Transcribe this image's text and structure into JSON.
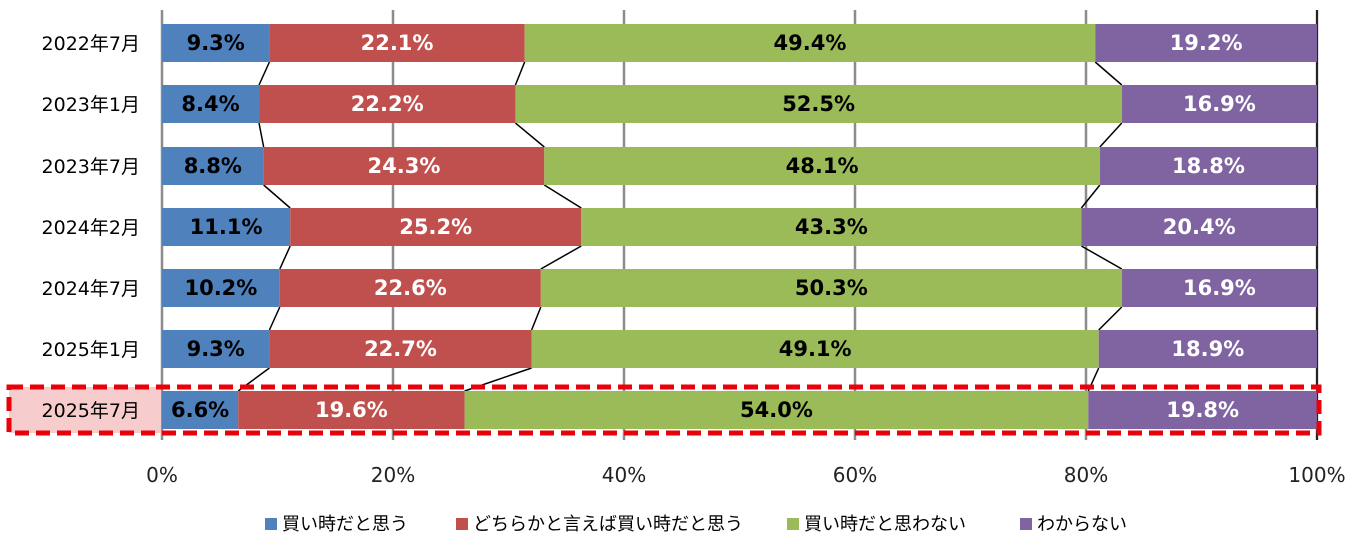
{
  "chart_data": {
    "type": "bar",
    "orientation": "horizontal",
    "stacked": true,
    "percent": true,
    "categories": [
      "2022年7月",
      "2023年1月",
      "2023年7月",
      "2024年2月",
      "2024年7月",
      "2025年1月",
      "2025年7月"
    ],
    "series": [
      {
        "name": "買い時だと思う",
        "color": "#4f81bd",
        "label_color": "#000000",
        "values": [
          9.3,
          8.4,
          8.8,
          11.1,
          10.2,
          9.3,
          6.6
        ],
        "labels": [
          "9.3%",
          "8.4%",
          "8.8%",
          "11.1%",
          "10.2%",
          "9.3%",
          "6.6%"
        ]
      },
      {
        "name": "どちらかと言えば買い時だと思う",
        "color": "#c0504d",
        "label_color": "#ffffff",
        "values": [
          22.1,
          22.2,
          24.3,
          25.2,
          22.6,
          22.7,
          19.6
        ],
        "labels": [
          "22.1%",
          "22.2%",
          "24.3%",
          "25.2%",
          "22.6%",
          "22.7%",
          "19.6%"
        ]
      },
      {
        "name": "買い時だと思わない",
        "color": "#9bbb59",
        "label_color": "#000000",
        "values": [
          49.4,
          52.5,
          48.1,
          43.3,
          50.3,
          49.1,
          54.0
        ],
        "labels": [
          "49.4%",
          "52.5%",
          "48.1%",
          "43.3%",
          "50.3%",
          "49.1%",
          "54.0%"
        ]
      },
      {
        "name": "わからない",
        "color": "#8064a2",
        "label_color": "#ffffff",
        "values": [
          19.2,
          16.9,
          18.8,
          20.4,
          16.9,
          18.9,
          19.8
        ],
        "labels": [
          "19.2%",
          "16.9%",
          "18.8%",
          "20.4%",
          "16.9%",
          "18.9%",
          "19.8%"
        ]
      }
    ],
    "x_ticks": [
      "0%",
      "20%",
      "40%",
      "60%",
      "80%",
      "100%"
    ],
    "xlim": [
      0,
      100
    ],
    "grid": true,
    "series_lines": true,
    "legend_position": "bottom",
    "highlight": {
      "category": "2025年7月",
      "style": "red dashed border"
    }
  }
}
